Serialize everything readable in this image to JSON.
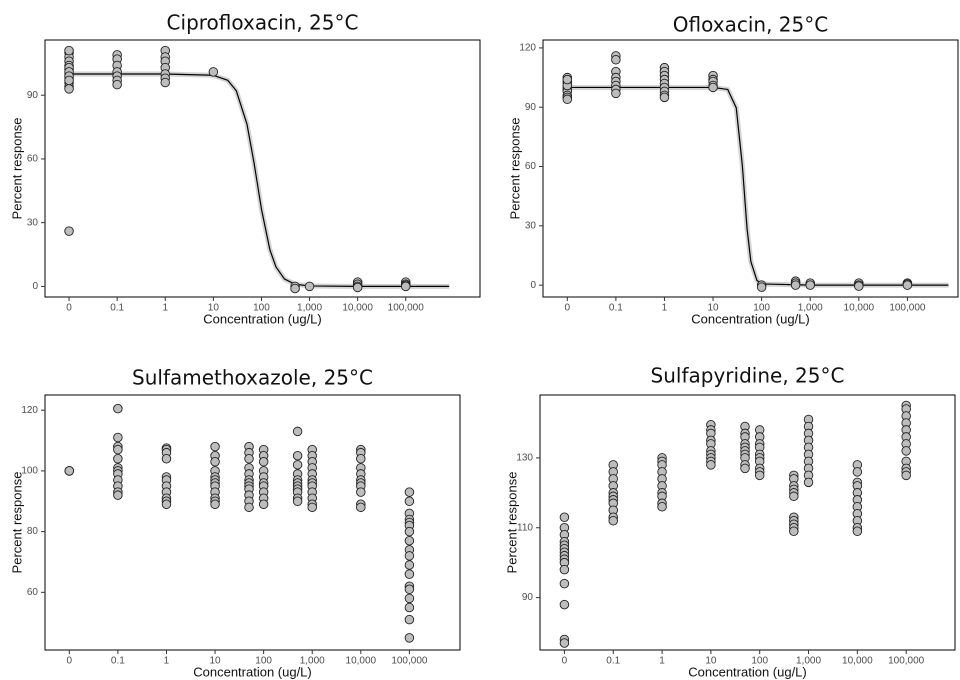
{
  "chart_data": [
    {
      "type": "scatter",
      "title": "Ciprofloxacin, 25°C",
      "x_label": "Concentration (ug/L)",
      "y_label": "Percent response",
      "x_log": true,
      "xlim": [
        0,
        3500000
      ],
      "ylim": [
        -5,
        116
      ],
      "xticks": [
        0,
        0.1,
        1,
        10,
        100,
        {
          "value": 1000,
          "label": "1,000"
        },
        {
          "value": 10000,
          "label": "10,000"
        },
        {
          "value": 100000,
          "label": "100,000"
        }
      ],
      "yticks": [
        0,
        30,
        60,
        90
      ],
      "series": [
        {
          "color": "#bdbdbd",
          "x": [
            0,
            0,
            0,
            0,
            0,
            0,
            0,
            0,
            0,
            0,
            0,
            0,
            0,
            0,
            0,
            0,
            0.1,
            0.1,
            0.1,
            0.1,
            0.1,
            0.1,
            0.1,
            1,
            1,
            1,
            1,
            1,
            1,
            1,
            10,
            500,
            500,
            1000,
            10000,
            10000,
            10000,
            10000,
            100000,
            100000,
            100000,
            100000
          ],
          "values": [
            110,
            108,
            106,
            104,
            102,
            100,
            98,
            96,
            94,
            93,
            111,
            103,
            101,
            99,
            97,
            26,
            109,
            107,
            104,
            101,
            99,
            97,
            95,
            111,
            108,
            106,
            103,
            100,
            98,
            96,
            101,
            0,
            -1,
            0,
            2,
            1,
            0,
            -0.5,
            2,
            1,
            0.5,
            0
          ]
        },
        {
          "type": "line",
          "color": "#000000",
          "x": [
            0,
            0.1,
            1,
            10,
            20,
            30,
            50,
            70,
            100,
            150,
            200,
            300,
            500,
            1000,
            10000,
            100000,
            800000
          ],
          "values": [
            100,
            100,
            100,
            99.4,
            97,
            92.1,
            76.4,
            58.3,
            36.4,
            17.2,
            9.2,
            3.5,
            1,
            0.2,
            0,
            0,
            0
          ]
        }
      ]
    },
    {
      "type": "scatter",
      "title": "Ofloxacin, 25°C",
      "x_label": "Concentration (ug/L)",
      "y_label": "Percent response",
      "x_log": true,
      "xlim": [
        0,
        1100000
      ],
      "ylim": [
        -6,
        124
      ],
      "xticks": [
        0,
        0.1,
        1,
        10,
        100,
        {
          "value": 1000,
          "label": "1,000"
        },
        {
          "value": 10000,
          "label": "10,000"
        },
        {
          "value": 100000,
          "label": "100,000"
        }
      ],
      "yticks": [
        0,
        30,
        60,
        90,
        120
      ],
      "series": [
        {
          "color": "#bdbdbd",
          "x": [
            0,
            0,
            0,
            0,
            0,
            0,
            0,
            0,
            0,
            0,
            0,
            0.1,
            0.1,
            0.1,
            0.1,
            0.1,
            0.1,
            0.1,
            0.1,
            1,
            1,
            1,
            1,
            1,
            1,
            1,
            1,
            1,
            10,
            10,
            10,
            10,
            10,
            100,
            100,
            500,
            500,
            500,
            1000,
            1000,
            10000,
            10000,
            10000,
            100000,
            100000,
            100000
          ],
          "values": [
            105,
            103,
            102,
            100,
            99,
            98,
            96,
            95,
            94,
            101,
            104,
            116,
            114,
            108,
            105,
            103,
            101,
            99,
            97,
            110,
            108,
            106,
            104,
            102,
            100,
            98,
            96,
            95,
            106,
            104,
            103,
            101,
            100,
            0,
            -1,
            2,
            1,
            0,
            1,
            0,
            1,
            0,
            -0.5,
            1,
            0.5,
            0
          ]
        },
        {
          "type": "line",
          "color": "#000000",
          "x": [
            0,
            0.1,
            1,
            10,
            20,
            30,
            40,
            50,
            60,
            80,
            100,
            1000,
            10000,
            100000,
            700000
          ],
          "values": [
            100,
            100,
            100,
            100,
            99,
            89.7,
            60.7,
            28.8,
            11.9,
            2.4,
            0.6,
            0,
            0,
            0,
            0
          ]
        }
      ]
    },
    {
      "type": "scatter",
      "title": "Sulfamethoxazole, 25°C",
      "x_label": "Concentration (ug/L)",
      "y_label": "Percent response",
      "x_log": true,
      "xlim": [
        0,
        1100000
      ],
      "ylim": [
        41,
        125
      ],
      "xticks": [
        0,
        0.1,
        1,
        10,
        100,
        {
          "value": 1000,
          "label": "1,000"
        },
        {
          "value": 10000,
          "label": "10,000"
        },
        {
          "value": 100000,
          "label": "100,000"
        }
      ],
      "yticks": [
        60,
        80,
        100,
        120
      ],
      "series": [
        {
          "color": "#bdbdbd",
          "x": [
            0,
            0,
            0,
            0.1,
            0.1,
            0.1,
            0.1,
            0.1,
            0.1,
            0.1,
            0.1,
            0.1,
            0.1,
            0.1,
            0.1,
            1,
            1,
            1,
            1,
            1,
            1,
            1,
            1,
            1,
            1,
            1,
            10,
            10,
            10,
            10,
            10,
            10,
            10,
            10,
            10,
            10,
            10,
            10,
            50,
            50,
            50,
            50,
            50,
            50,
            50,
            50,
            50,
            50,
            50,
            50,
            100,
            100,
            100,
            100,
            100,
            100,
            100,
            100,
            100,
            100,
            500,
            500,
            500,
            500,
            500,
            500,
            500,
            500,
            500,
            500,
            500,
            1000,
            1000,
            1000,
            1000,
            1000,
            1000,
            1000,
            1000,
            1000,
            1000,
            1000,
            1000,
            10000,
            10000,
            10000,
            10000,
            10000,
            10000,
            10000,
            10000,
            10000,
            10000,
            10000,
            100000,
            100000,
            100000,
            100000,
            100000,
            100000,
            100000,
            100000,
            100000,
            100000,
            100000,
            100000,
            100000,
            100000,
            100000,
            100000,
            100000,
            100000
          ],
          "values": [
            100,
            100,
            100,
            120.5,
            111,
            108,
            107,
            104,
            101,
            100,
            99,
            97,
            95,
            93,
            92,
            107.5,
            107,
            106,
            104,
            98,
            97,
            95,
            93,
            91,
            90,
            89,
            108,
            105,
            103,
            100,
            98,
            97,
            96,
            95,
            93,
            91,
            90,
            89,
            108,
            106,
            104,
            101,
            99,
            97,
            96,
            95,
            94,
            92,
            90,
            88,
            107,
            105,
            103,
            100,
            98,
            96,
            95,
            93,
            91,
            89,
            113,
            105,
            102,
            99,
            97,
            96,
            95,
            94,
            93,
            91,
            90,
            107,
            105,
            103,
            101,
            99,
            97,
            96,
            95,
            93,
            91,
            89,
            88,
            107,
            106,
            104,
            101,
            99,
            97,
            96,
            95,
            93,
            89,
            88,
            93,
            90,
            86,
            84,
            83,
            82,
            80,
            77,
            74,
            72,
            69,
            66,
            62,
            61,
            58,
            55,
            51,
            45
          ]
        }
      ]
    },
    {
      "type": "scatter",
      "title": "Sulfapyridine, 25°C",
      "x_label": "Concentration (ug/L)",
      "y_label": "Percent response",
      "x_log": true,
      "xlim": [
        0,
        1000000
      ],
      "ylim": [
        75,
        148
      ],
      "xticks": [
        0,
        0.1,
        1,
        10,
        100,
        {
          "value": 1000,
          "label": "1,000"
        },
        {
          "value": 10000,
          "label": "10,000"
        },
        {
          "value": 100000,
          "label": "100,000"
        }
      ],
      "yticks": [
        90,
        110,
        130
      ],
      "series": [
        {
          "color": "#bdbdbd",
          "x": [
            0,
            0,
            0,
            0,
            0,
            0,
            0,
            0,
            0,
            0,
            0,
            0,
            0,
            0,
            0,
            0.1,
            0.1,
            0.1,
            0.1,
            0.1,
            0.1,
            0.1,
            0.1,
            0.1,
            0.1,
            0.1,
            1,
            1,
            1,
            1,
            1,
            1,
            1,
            1,
            1,
            1,
            10,
            10,
            10,
            10,
            10,
            10,
            10,
            10,
            10,
            10,
            50,
            50,
            50,
            50,
            50,
            50,
            50,
            50,
            50,
            50,
            100,
            100,
            100,
            100,
            100,
            100,
            100,
            100,
            100,
            100,
            500,
            500,
            500,
            500,
            500,
            500,
            500,
            500,
            500,
            500,
            500,
            1000,
            1000,
            1000,
            1000,
            1000,
            1000,
            1000,
            1000,
            1000,
            1000,
            10000,
            10000,
            10000,
            10000,
            10000,
            10000,
            10000,
            10000,
            10000,
            10000,
            10000,
            100000,
            100000,
            100000,
            100000,
            100000,
            100000,
            100000,
            100000,
            100000,
            100000,
            100000,
            100000
          ],
          "values": [
            113,
            110,
            108,
            106,
            105,
            104,
            103,
            102,
            101,
            100,
            98,
            94,
            88,
            78,
            77,
            128,
            126,
            124,
            122,
            120,
            119,
            118,
            117,
            115,
            113,
            112,
            130,
            129,
            128,
            126,
            124,
            122,
            120,
            119,
            117,
            116,
            139.5,
            138,
            137,
            135,
            134,
            132,
            131,
            130,
            129,
            128,
            139,
            137,
            136,
            134,
            133,
            132,
            131,
            130,
            128,
            127,
            138,
            136,
            134,
            133,
            131,
            130,
            129,
            127,
            126,
            125,
            125,
            124,
            122,
            121,
            120,
            119,
            113,
            112,
            111,
            110,
            109,
            141,
            139,
            137,
            135,
            133,
            131,
            129,
            127,
            125,
            123,
            128,
            126,
            123,
            122,
            120,
            118,
            116,
            114,
            112,
            110,
            109,
            145,
            144,
            142,
            140,
            138,
            136,
            134,
            132,
            129,
            127,
            126,
            125
          ]
        }
      ]
    }
  ]
}
